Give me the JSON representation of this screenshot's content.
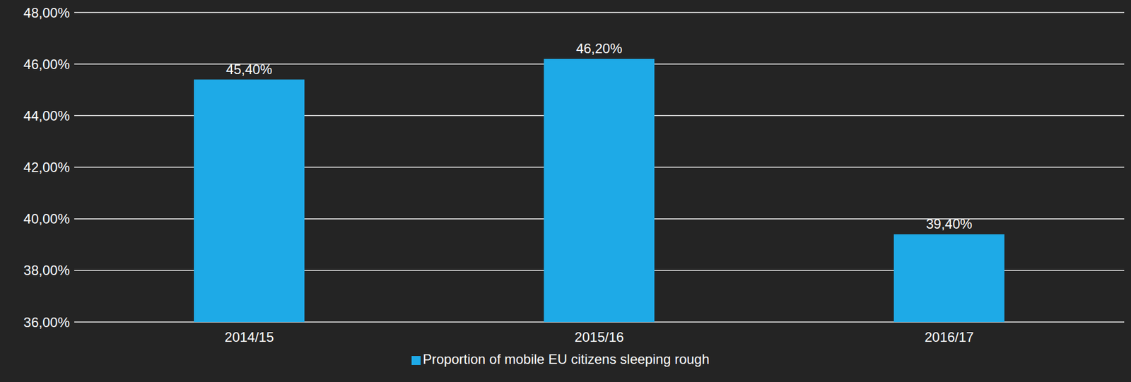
{
  "chart_data": {
    "type": "bar",
    "categories": [
      "2014/15",
      "2015/16",
      "2016/17"
    ],
    "series": [
      {
        "name": "Proportion of mobile EU citizens sleeping rough",
        "color": "#1eaae7",
        "values": [
          45.4,
          46.2,
          39.4
        ],
        "value_labels": [
          "45,40%",
          "46,20%",
          "39,40%"
        ]
      }
    ],
    "ylim": [
      36,
      48
    ],
    "yticks": [
      {
        "value": 36,
        "label": "36,00%"
      },
      {
        "value": 38,
        "label": "38,00%"
      },
      {
        "value": 40,
        "label": "40,00%"
      },
      {
        "value": 42,
        "label": "42,00%"
      },
      {
        "value": 44,
        "label": "44,00%"
      },
      {
        "value": 46,
        "label": "46,00%"
      },
      {
        "value": 48,
        "label": "48,00%"
      }
    ],
    "grid": true,
    "data_labels": true,
    "legend": "bottom"
  }
}
